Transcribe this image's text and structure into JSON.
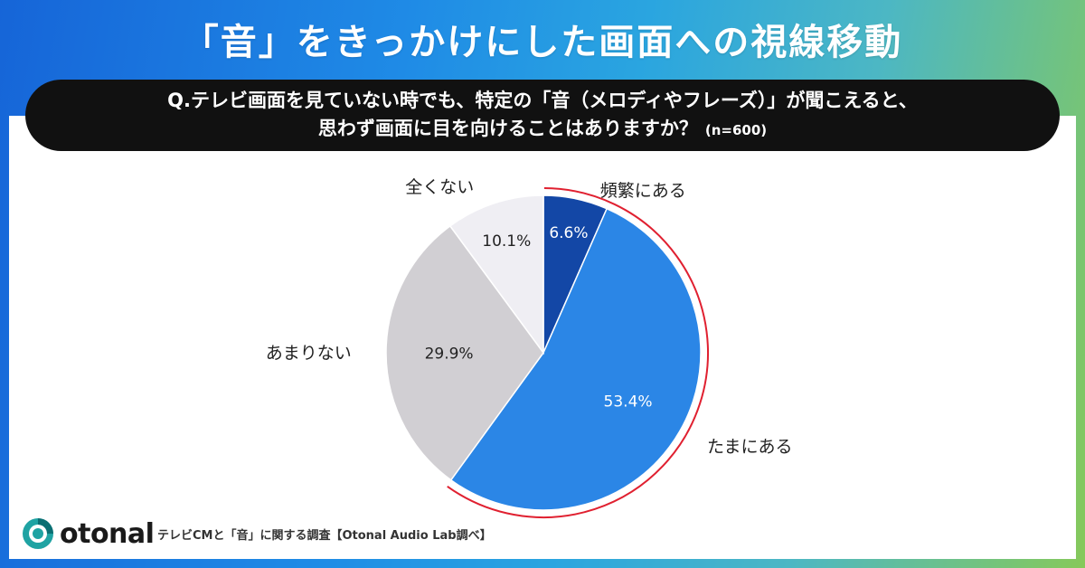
{
  "header": {
    "title": "「音」をきっかけにした画面への視線移動"
  },
  "question": {
    "line1": "Q.テレビ画面を見ていない時でも、特定の「音（メロディやフレーズ）」が聞こえると、",
    "line2": "思わず画面に目を向けることはありますか？",
    "n_label": "(n=600)"
  },
  "chart_data": {
    "type": "pie",
    "title": "",
    "start": "12 o'clock",
    "direction": "clockwise",
    "slices": [
      {
        "label": "頻繁にある",
        "value": 6.6,
        "value_label": "6.6%",
        "color": "#1347a6"
      },
      {
        "label": "たまにある",
        "value": 53.4,
        "value_label": "53.4%",
        "color": "#2b86e6"
      },
      {
        "label": "あまりない",
        "value": 29.9,
        "value_label": "29.9%",
        "color": "#d1cfd3"
      },
      {
        "label": "全くない",
        "value": 10.1,
        "value_label": "10.1%",
        "color": "#efeef3"
      }
    ],
    "highlight_arc": {
      "covers": [
        "頻繁にある",
        "たまにある"
      ],
      "color": "#e02030"
    }
  },
  "footer": {
    "logo_text": "otonal",
    "source": "テレビCMと「音」に関する調査【Otonal Audio Lab調べ】"
  }
}
